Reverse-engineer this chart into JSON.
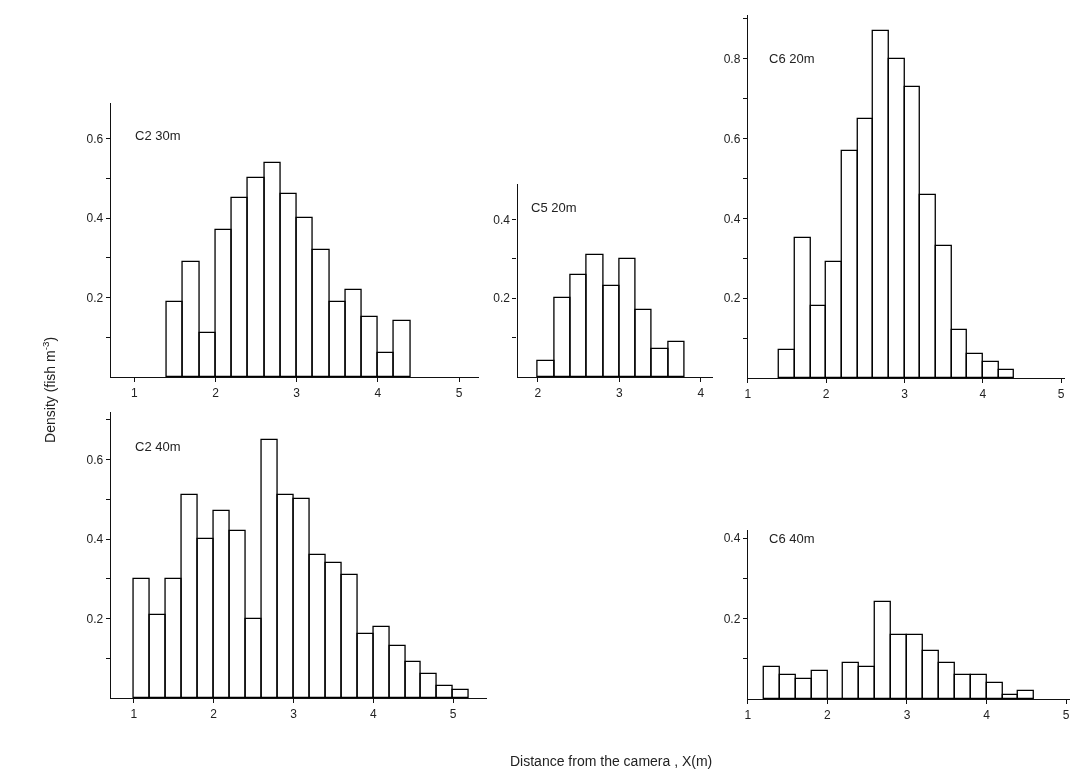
{
  "chart_data": [
    {
      "type": "histogram",
      "title": "C2 30m",
      "ylabel": "Density (fish m$^{-3}$)",
      "color": "#000000",
      "bins": [
        1.4,
        1.6,
        1.8,
        2.0,
        2.2,
        2.4,
        2.6,
        2.8,
        3.0,
        3.2,
        3.4,
        3.6,
        3.8,
        4.0,
        4.2,
        4.4
      ],
      "values": [
        0.19,
        0.29,
        0.11,
        0.37,
        0.45,
        0.5,
        0.54,
        0.46,
        0.4,
        0.32,
        0.19,
        0.22,
        0.15,
        0.06,
        0.14
      ],
      "xlim": [
        0.71,
        5.24
      ],
      "ylim": [
        0,
        0.69
      ],
      "xticks": [
        1,
        2,
        3,
        4,
        5
      ],
      "yticks": [
        {
          "value": 0.1,
          "label": null
        },
        0.2,
        {
          "value": 0.3,
          "label": null
        },
        0.4,
        {
          "value": 0.5,
          "label": null
        },
        0.6
      ]
    },
    {
      "type": "histogram",
      "title": "C5 20m",
      "color": "#000000",
      "bins": [
        2.0,
        2.2,
        2.4,
        2.6,
        2.8,
        3.0,
        3.2,
        3.4,
        3.6,
        3.8
      ],
      "values": [
        0.04,
        0.2,
        0.26,
        0.31,
        0.23,
        0.3,
        0.17,
        0.07,
        0.09
      ],
      "xlim": [
        1.75,
        4.15
      ],
      "ylim": [
        0,
        0.49
      ],
      "xticks": [
        2,
        3,
        4
      ],
      "yticks": [
        {
          "value": 0.1,
          "label": null
        },
        0.2,
        {
          "value": 0.3,
          "label": null
        },
        0.4
      ]
    },
    {
      "type": "histogram",
      "title": "C6 20m",
      "color": "#000000",
      "bins": [
        1.4,
        1.6,
        1.8,
        2.0,
        2.2,
        2.4,
        2.6,
        2.8,
        3.0,
        3.2,
        3.4,
        3.6,
        3.8,
        4.0,
        4.2,
        4.4
      ],
      "values": [
        0.07,
        0.35,
        0.18,
        0.29,
        0.57,
        0.65,
        0.87,
        0.8,
        0.73,
        0.46,
        0.33,
        0.12,
        0.06,
        0.04,
        0.02
      ],
      "xlim": [
        1.0,
        5.05
      ],
      "ylim": [
        0,
        0.91
      ],
      "xticks": [
        1,
        2,
        3,
        4,
        5
      ],
      "yticks": [
        {
          "value": 0.1,
          "label": null
        },
        0.2,
        {
          "value": 0.3,
          "label": null
        },
        0.4,
        {
          "value": 0.5,
          "label": null
        },
        0.6,
        {
          "value": 0.7,
          "label": null
        },
        0.8,
        {
          "value": 0.9,
          "label": null
        }
      ]
    },
    {
      "type": "histogram",
      "title": "C2 40m",
      "xlabel": "Distance from the camera , X(m)",
      "color": "#000000",
      "bins": [
        1.0,
        1.2,
        1.4,
        1.6,
        1.8,
        2.0,
        2.2,
        2.4,
        2.6,
        2.8,
        3.0,
        3.2,
        3.4,
        3.6,
        3.8,
        4.0,
        4.2,
        4.4,
        4.6,
        4.8,
        5.0,
        5.2
      ],
      "values": [
        0.3,
        0.21,
        0.3,
        0.51,
        0.4,
        0.47,
        0.42,
        0.2,
        0.65,
        0.51,
        0.5,
        0.36,
        0.34,
        0.31,
        0.16,
        0.18,
        0.13,
        0.09,
        0.06,
        0.03,
        0.02
      ],
      "xlim": [
        0.71,
        5.42
      ],
      "ylim": [
        0,
        0.72
      ],
      "xticks": [
        1,
        2,
        3,
        4,
        5
      ],
      "yticks": [
        {
          "value": 0.1,
          "label": null
        },
        0.2,
        {
          "value": 0.3,
          "label": null
        },
        0.4,
        {
          "value": 0.5,
          "label": null
        },
        0.6,
        {
          "value": 0.7,
          "label": null
        }
      ]
    },
    {
      "type": "histogram",
      "title": "C6 40m",
      "color": "#000000",
      "bins": [
        1.2,
        1.4,
        1.6,
        1.8,
        2.0,
        2.2,
        2.4,
        2.6,
        2.8,
        3.0,
        3.2,
        3.4,
        3.6,
        3.8,
        4.0,
        4.2,
        4.4,
        4.6
      ],
      "values": [
        0.08,
        0.06,
        0.05,
        0.07,
        0,
        0.09,
        0.08,
        0.24,
        0.16,
        0.16,
        0.12,
        0.09,
        0.06,
        0.06,
        0.04,
        0.01,
        0.02
      ],
      "xlim": [
        1.0,
        5.05
      ],
      "ylim": [
        0,
        0.42
      ],
      "xticks": [
        1,
        2,
        3,
        4,
        5
      ],
      "yticks": [
        {
          "value": 0.1,
          "label": null
        },
        0.2,
        {
          "value": 0.3,
          "label": null
        },
        0.4
      ]
    }
  ]
}
